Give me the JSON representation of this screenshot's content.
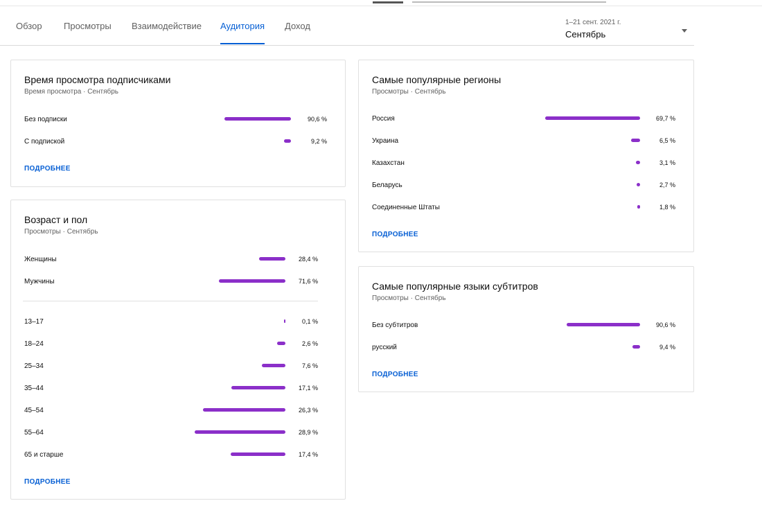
{
  "tabs": [
    "Обзор",
    "Просмотры",
    "Взаимодействие",
    "Аудитория",
    "Доход"
  ],
  "active_tab": "Аудитория",
  "date_picker": {
    "range": "1–21 сент. 2021 г.",
    "label": "Сентябрь"
  },
  "subscribers_card": {
    "title": "Время просмотра подписчиками",
    "subtitle": "Время просмотра · Сентябрь",
    "rows": [
      {
        "label": "Без подписки",
        "value": "90,6 %",
        "pct": 90.6
      },
      {
        "label": "С подпиской",
        "value": "9,2 %",
        "pct": 9.2
      }
    ],
    "more": "ПОДРОБНЕЕ"
  },
  "age_gender_card": {
    "title": "Возраст и пол",
    "subtitle": "Просмотры · Сентябрь",
    "gender_rows": [
      {
        "label": "Женщины",
        "value": "28,4 %",
        "pct": 28.4
      },
      {
        "label": "Мужчины",
        "value": "71,6 %",
        "pct": 71.6
      }
    ],
    "age_rows": [
      {
        "label": "13–17",
        "value": "0,1 %",
        "pct": 0.1
      },
      {
        "label": "18–24",
        "value": "2,6 %",
        "pct": 2.6
      },
      {
        "label": "25–34",
        "value": "7,6 %",
        "pct": 7.6
      },
      {
        "label": "35–44",
        "value": "17,1 %",
        "pct": 17.1
      },
      {
        "label": "45–54",
        "value": "26,3 %",
        "pct": 26.3
      },
      {
        "label": "55–64",
        "value": "28,9 %",
        "pct": 28.9
      },
      {
        "label": "65 и старше",
        "value": "17,4 %",
        "pct": 17.4
      }
    ],
    "more": "ПОДРОБНЕЕ"
  },
  "regions_card": {
    "title": "Самые популярные регионы",
    "subtitle": "Просмотры · Сентябрь",
    "rows": [
      {
        "label": "Россия",
        "value": "69,7 %",
        "pct": 69.7
      },
      {
        "label": "Украина",
        "value": "6,5 %",
        "pct": 6.5
      },
      {
        "label": "Казахстан",
        "value": "3,1 %",
        "pct": 3.1
      },
      {
        "label": "Беларусь",
        "value": "2,7 %",
        "pct": 2.7
      },
      {
        "label": "Соединенные Штаты",
        "value": "1,8 %",
        "pct": 1.8
      }
    ],
    "more": "ПОДРОБНЕЕ"
  },
  "subtitles_card": {
    "title": "Самые популярные языки субтитров",
    "subtitle": "Просмотры · Сентябрь",
    "rows": [
      {
        "label": "Без субтитров",
        "value": "90,6 %",
        "pct": 90.6
      },
      {
        "label": "русский",
        "value": "9,4 %",
        "pct": 9.4
      }
    ],
    "more": "ПОДРОБНЕЕ"
  },
  "colors": {
    "bar": "#8b2fc9",
    "link": "#065fd4"
  }
}
